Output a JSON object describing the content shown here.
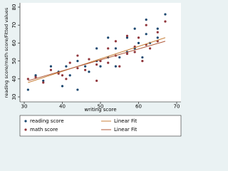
{
  "chart_data": {
    "type": "scatter",
    "x_label": "writing score",
    "y_label": "reading score/math score/Fitted values",
    "xlim": [
      30,
      70
    ],
    "xticks": [
      30,
      40,
      50,
      60,
      70
    ],
    "ylim": [
      30,
      80
    ],
    "yticks": [
      30,
      40,
      50,
      60,
      70,
      80
    ],
    "series": [
      {
        "name": "reading score",
        "kind": "points",
        "color": "#1a476f",
        "x": [
          31,
          33,
          35,
          37,
          39,
          40,
          41,
          42,
          44,
          44,
          46,
          47,
          49,
          49,
          50,
          52,
          52,
          54,
          54,
          55,
          57,
          57,
          59,
          59,
          60,
          61,
          62,
          62,
          63,
          65,
          65,
          67
        ],
        "values": [
          34,
          42,
          39,
          47,
          44,
          36,
          47,
          42,
          50,
          34,
          47,
          44,
          50,
          57,
          47,
          52,
          63,
          47,
          57,
          52,
          55,
          63,
          57,
          68,
          60,
          52,
          65,
          73,
          60,
          68,
          63,
          76
        ]
      },
      {
        "name": "math score",
        "kind": "points",
        "color": "#90353b",
        "x": [
          31,
          33,
          35,
          37,
          39,
          40,
          41,
          42,
          44,
          44,
          46,
          47,
          49,
          49,
          50,
          52,
          52,
          54,
          54,
          55,
          57,
          57,
          59,
          59,
          60,
          61,
          62,
          62,
          63,
          65,
          65,
          67
        ],
        "values": [
          40,
          41,
          38,
          45,
          43,
          42,
          40,
          49,
          46,
          53,
          45,
          51,
          48,
          39,
          50,
          57,
          49,
          53,
          61,
          47,
          54,
          64,
          55,
          58,
          63,
          50,
          59,
          70,
          57,
          66,
          61,
          72
        ]
      },
      {
        "name": "Linear Fit",
        "kind": "line",
        "color": "#c8823c",
        "x": [
          31,
          67
        ],
        "values": [
          38,
          63
        ]
      },
      {
        "name": "Linear Fit",
        "kind": "line",
        "color": "#b05a3a",
        "x": [
          31,
          67
        ],
        "values": [
          39,
          61
        ]
      }
    ]
  }
}
